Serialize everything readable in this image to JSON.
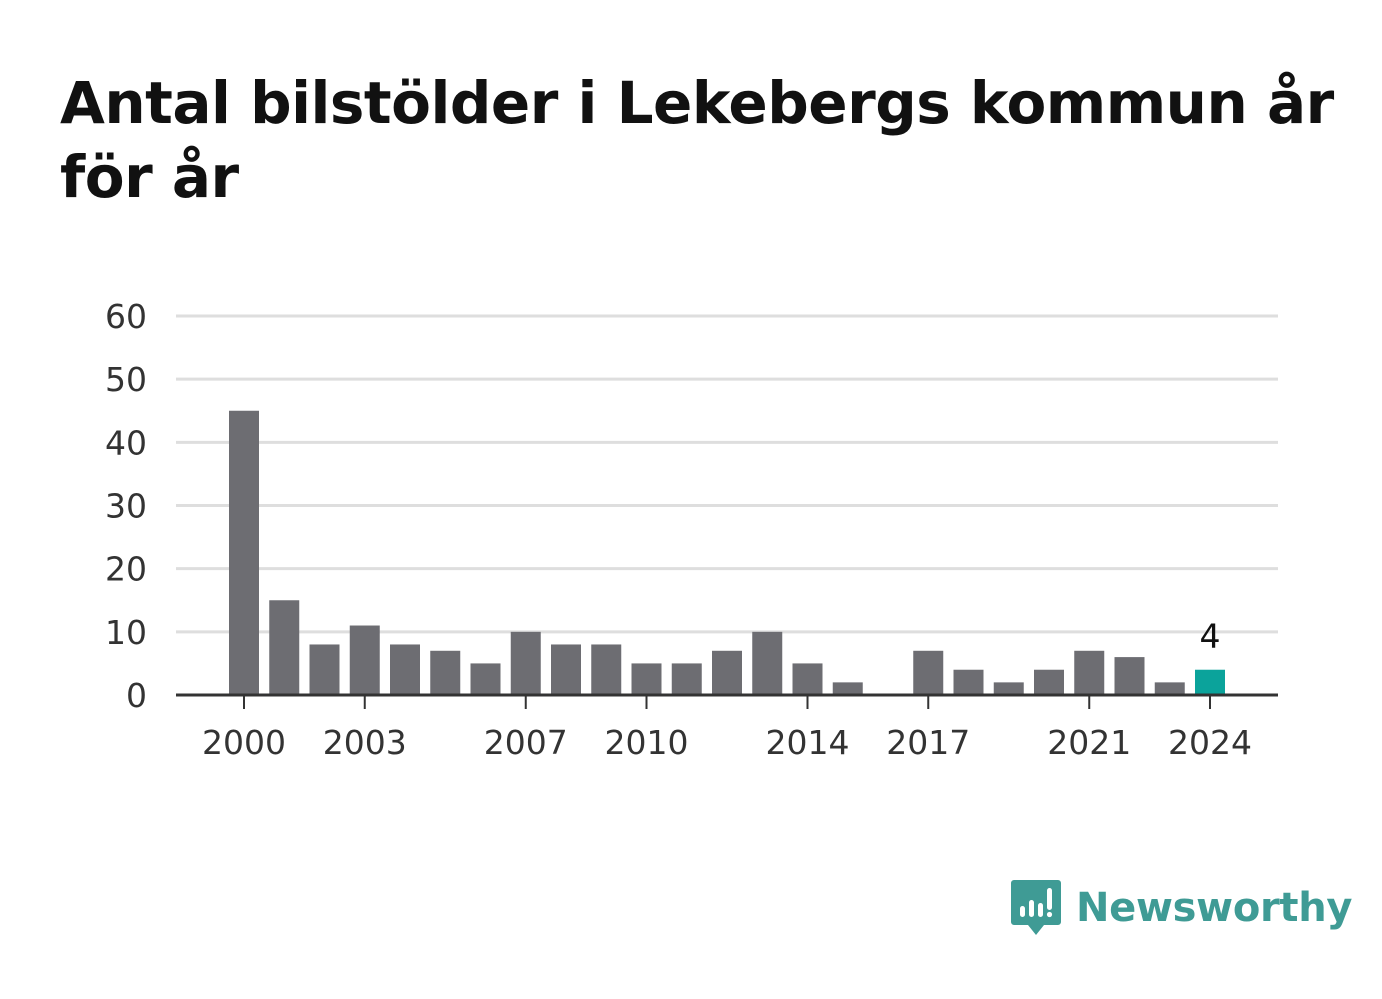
{
  "title": "Antal bilstölder i Lekebergs kommun år för år",
  "brand": {
    "name": "Newsworthy",
    "color": "#3f9b95",
    "icon": "bar-chart-speech-bubble-icon"
  },
  "colors": {
    "bar": "#6d6d72",
    "highlight": "#0ba39b",
    "grid": "#dedede",
    "axis": "#333333",
    "text": "#333333"
  },
  "chart_data": {
    "type": "bar",
    "title": "Antal bilstölder i Lekebergs kommun år för år",
    "xlabel": "",
    "ylabel": "",
    "categories": [
      2000,
      2001,
      2002,
      2003,
      2004,
      2005,
      2006,
      2007,
      2008,
      2009,
      2010,
      2011,
      2012,
      2013,
      2014,
      2015,
      2016,
      2017,
      2018,
      2019,
      2020,
      2021,
      2022,
      2023,
      2024
    ],
    "values": [
      45,
      15,
      8,
      11,
      8,
      7,
      5,
      10,
      8,
      8,
      5,
      5,
      7,
      10,
      5,
      2,
      0,
      7,
      4,
      2,
      4,
      7,
      6,
      2,
      4
    ],
    "x_tick_labels": [
      "2000",
      "2003",
      "2007",
      "2010",
      "2014",
      "2017",
      "2021",
      "2024"
    ],
    "y_ticks": [
      0,
      10,
      20,
      30,
      40,
      50,
      60
    ],
    "ylim": [
      0,
      60
    ],
    "grid": true,
    "legend": "none",
    "highlight": {
      "category": 2024,
      "value_label": "4"
    }
  }
}
